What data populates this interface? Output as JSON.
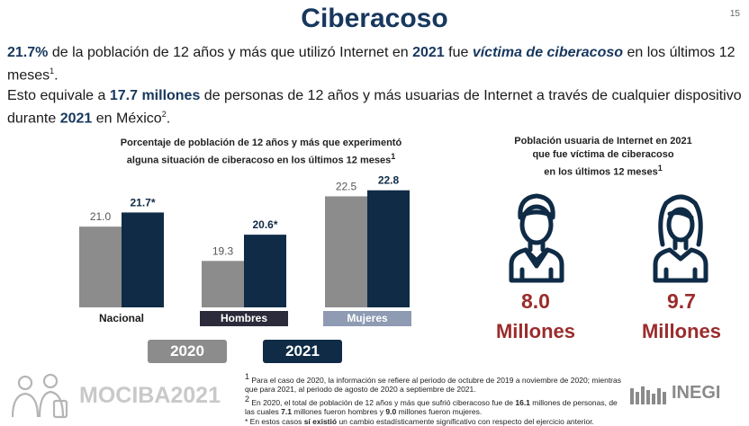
{
  "header": {
    "title": "Ciberacoso",
    "page_number": "15"
  },
  "paragraph1": {
    "pct": "21.7%",
    "t1": " de la población de 12 años y más que utilizó Internet en ",
    "year": "2021",
    "t2": " fue ",
    "em": "víctima de ciberacoso",
    "t3": " en los últimos 12 meses",
    "sup": "1",
    "t4": "."
  },
  "paragraph2": {
    "t1": "Esto equivale a ",
    "millions": "17.7 millones",
    "t2": " de personas de 12 años y más usuarias de Internet a través de cualquier dispositivo durante ",
    "year": "2021",
    "t3": " en México",
    "sup": "2",
    "t4": "."
  },
  "chart_data": {
    "type": "bar",
    "title_line1": "Porcentaje de población de 12 años y más que experimentó",
    "title_line2": "alguna situación de ciberacoso en los últimos 12 meses",
    "title_sup": "1",
    "categories": [
      "Nacional",
      "Hombres",
      "Mujeres"
    ],
    "series": [
      {
        "name": "2020",
        "values": [
          21.0,
          19.3,
          22.5
        ],
        "labels": [
          "21.0",
          "19.3",
          "22.5"
        ],
        "color": "#8c8c8c"
      },
      {
        "name": "2021",
        "values": [
          21.7,
          20.6,
          22.8
        ],
        "labels": [
          "21.7*",
          "20.6*",
          "22.8"
        ],
        "color": "#0f2b46"
      }
    ],
    "ylim": [
      17,
      23.5
    ],
    "grid": false,
    "legend_position": "bottom"
  },
  "category_label_styles": {
    "Nacional": {
      "bg": "#ffffff",
      "fg": "#1a1a1a"
    },
    "Hombres": {
      "bg": "#2b2b3b",
      "fg": "#ffffff"
    },
    "Mujeres": {
      "bg": "#8e9bb3",
      "fg": "#ffffff"
    }
  },
  "right_panel": {
    "title_line1": "Población usuaria de Internet en 2021",
    "title_line2": "que fue víctima de ciberacoso",
    "title_line3": "en los últimos 12 meses",
    "title_sup": "1",
    "men": {
      "icon": "man-icon",
      "value": "8.0",
      "unit": "Millones"
    },
    "women": {
      "icon": "woman-icon",
      "value": "9.7",
      "unit": "Millones"
    },
    "icon_color": "#0f2b46",
    "value_color": "#9b2c2c"
  },
  "footnotes": {
    "n1_sup": "1",
    "n1_text": " Para el caso de 2020, la información se refiere al periodo de octubre de 2019 a noviembre de 2020; mientras que para 2021, al periodo de agosto de 2020 a septiembre de 2021.",
    "n2_sup": "2",
    "n2_a": " En 2020, el total de población de 12 años y más que sufrió ciberacoso fue de ",
    "n2_b": "16.1",
    "n2_c": " millones de personas, de las cuales ",
    "n2_d": "7.1",
    "n2_e": " millones fueron hombres y ",
    "n2_f": "9.0",
    "n2_g": " millones fueron mujeres.",
    "n3_star": "*",
    "n3_a": " En estos casos ",
    "n3_b": "sí existió",
    "n3_c": " un cambio estadísticamente significativo con respecto del ejercicio anterior."
  },
  "logos": {
    "mociba": "MOCIBA2021",
    "inegi": "INEGI"
  }
}
